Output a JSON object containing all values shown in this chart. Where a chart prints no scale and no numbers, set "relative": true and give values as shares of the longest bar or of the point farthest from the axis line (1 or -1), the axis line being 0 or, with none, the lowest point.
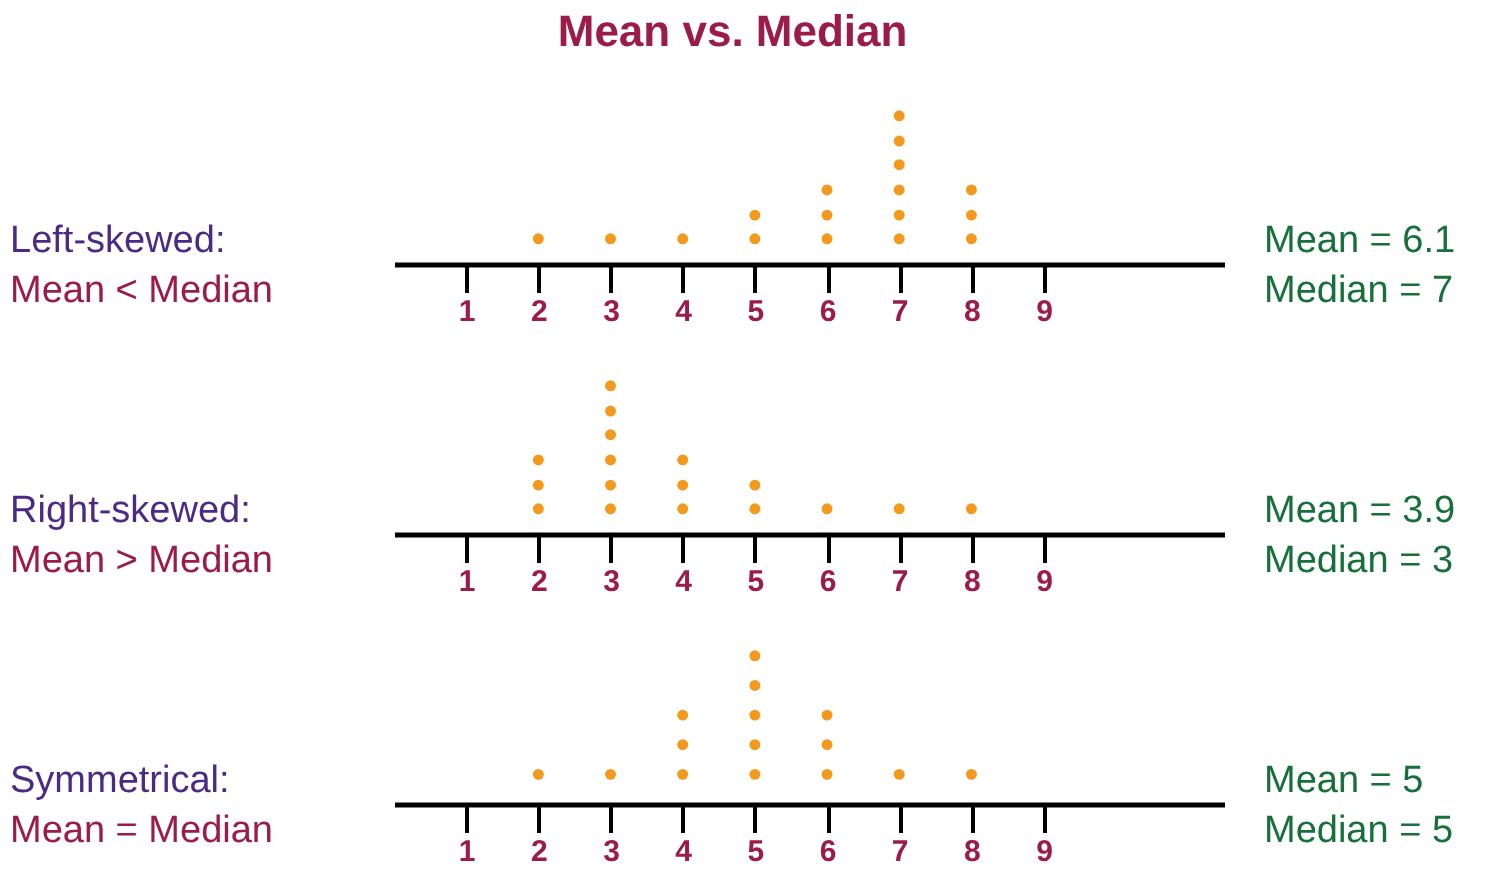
{
  "chart_data": [
    {
      "type": "scatter",
      "title": "Mean vs. Median",
      "color": "#f39a1e",
      "marker": "circle",
      "tick_labels": "x",
      "grid": false,
      "x": [
        2,
        3,
        4,
        5,
        5,
        6,
        6,
        6,
        7,
        7,
        7,
        7,
        7,
        7,
        8,
        8,
        8
      ],
      "values": [
        0.17,
        0.17,
        0.17,
        0.17,
        0.33,
        0.17,
        0.33,
        0.5,
        0.17,
        0.33,
        0.5,
        0.67,
        0.83,
        1,
        0.17,
        0.33,
        0.5
      ],
      "relative": true,
      "xlim": [
        0,
        11.5
      ],
      "xticks": [
        1,
        2,
        3,
        4,
        5,
        6,
        7,
        8,
        9
      ],
      "annotations": [
        "Left-skewed:",
        "Mean < Median",
        "Mean = 6.1",
        "Median = 7"
      ]
    },
    {
      "type": "scatter",
      "color": "#f39a1e",
      "marker": "circle",
      "tick_labels": "x",
      "grid": false,
      "x": [
        2,
        2,
        2,
        3,
        3,
        3,
        3,
        3,
        3,
        4,
        4,
        4,
        5,
        5,
        6,
        7,
        8
      ],
      "values": [
        0.17,
        0.33,
        0.5,
        0.17,
        0.33,
        0.5,
        0.67,
        0.83,
        1,
        0.17,
        0.33,
        0.5,
        0.17,
        0.33,
        0.17,
        0.17,
        0.17
      ],
      "relative": true,
      "xlim": [
        0,
        11.5
      ],
      "xticks": [
        1,
        2,
        3,
        4,
        5,
        6,
        7,
        8,
        9
      ],
      "annotations": [
        "Right-skewed:",
        "Mean > Median",
        "Mean = 3.9",
        "Median = 3"
      ]
    },
    {
      "type": "scatter",
      "color": "#f39a1e",
      "marker": "circle",
      "tick_labels": "x",
      "grid": false,
      "x": [
        2,
        3,
        4,
        4,
        4,
        5,
        5,
        5,
        5,
        5,
        6,
        6,
        6,
        7,
        8
      ],
      "values": [
        0.2,
        0.2,
        0.2,
        0.4,
        0.6,
        0.2,
        0.4,
        0.6,
        0.8,
        1,
        0.2,
        0.4,
        0.6,
        0.2,
        0.2
      ],
      "relative": true,
      "xlim": [
        0,
        11.5
      ],
      "xticks": [
        1,
        2,
        3,
        4,
        5,
        6,
        7,
        8,
        9
      ],
      "annotations": [
        "Symmetrical:",
        "Mean = Median",
        "Mean = 5",
        "Median = 5"
      ]
    }
  ]
}
